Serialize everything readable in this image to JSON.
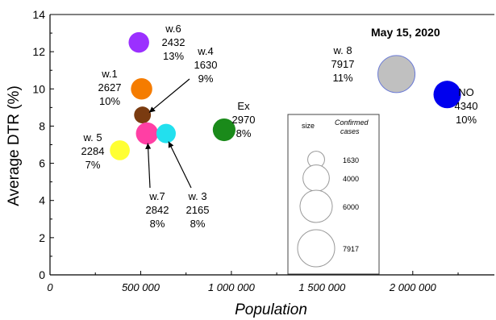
{
  "chart_data": {
    "type": "scatter",
    "title": "May 15, 2020",
    "xlabel": "Population",
    "ylabel": "Average DTR (%)",
    "xlim": [
      0,
      2450000
    ],
    "ylim": [
      0,
      14
    ],
    "xticks": [
      0,
      500000,
      1000000,
      1500000,
      2000000
    ],
    "xtick_labels": [
      "0",
      "500 000",
      "1 000 000",
      "1 500 000",
      "2 000 000"
    ],
    "yticks": [
      0,
      2,
      4,
      6,
      8,
      10,
      12,
      14
    ],
    "ytick_labels": [
      "0",
      "2",
      "4",
      "6",
      "8",
      "10",
      "12",
      "14"
    ],
    "bubble_size_by": "Confirmed cases",
    "points": [
      {
        "label": "w.6",
        "cases_label": "2432",
        "pct_label": "13%",
        "x": 490000,
        "y": 12.5,
        "cases": 2432,
        "color": "#9b30ff"
      },
      {
        "label": "w.1",
        "cases_label": "2627",
        "pct_label": "10%",
        "x": 505000,
        "y": 10.0,
        "cases": 2627,
        "color": "#f57c00"
      },
      {
        "label": "w.4",
        "cases_label": "1630",
        "pct_label": "9%",
        "x": 510000,
        "y": 8.6,
        "cases": 1630,
        "color": "#7a3b10"
      },
      {
        "label": "w. 5",
        "cases_label": "2284",
        "pct_label": "7%",
        "x": 385000,
        "y": 6.7,
        "cases": 2284,
        "color": "#ffff33"
      },
      {
        "label": "w.7",
        "cases_label": "2842",
        "pct_label": "8%",
        "x": 535000,
        "y": 7.6,
        "cases": 2842,
        "color": "#ff3fa4"
      },
      {
        "label": "w. 3",
        "cases_label": "2165",
        "pct_label": "8%",
        "x": 640000,
        "y": 7.6,
        "cases": 2165,
        "color": "#22e0ee"
      },
      {
        "label": "Ex",
        "cases_label": "2970",
        "pct_label": "8%",
        "x": 960000,
        "y": 7.8,
        "cases": 2970,
        "color": "#1a8a1a"
      },
      {
        "label": "w. 8",
        "cases_label": "7917",
        "pct_label": "11%",
        "x": 1910000,
        "y": 10.8,
        "cases": 7917,
        "color": "#c0c0c0"
      },
      {
        "label": "NO",
        "cases_label": "4340",
        "pct_label": "10%",
        "x": 2190000,
        "y": 9.7,
        "cases": 4340,
        "color": "#0000ee"
      }
    ],
    "legend": {
      "size_header": "size",
      "cases_header_1": "Confirmed",
      "cases_header_2": "cases",
      "entries": [
        {
          "label": "1630",
          "cases": 1630
        },
        {
          "label": "4000",
          "cases": 4000
        },
        {
          "label": "6000",
          "cases": 6000
        },
        {
          "label": "7917",
          "cases": 7917
        }
      ]
    }
  }
}
